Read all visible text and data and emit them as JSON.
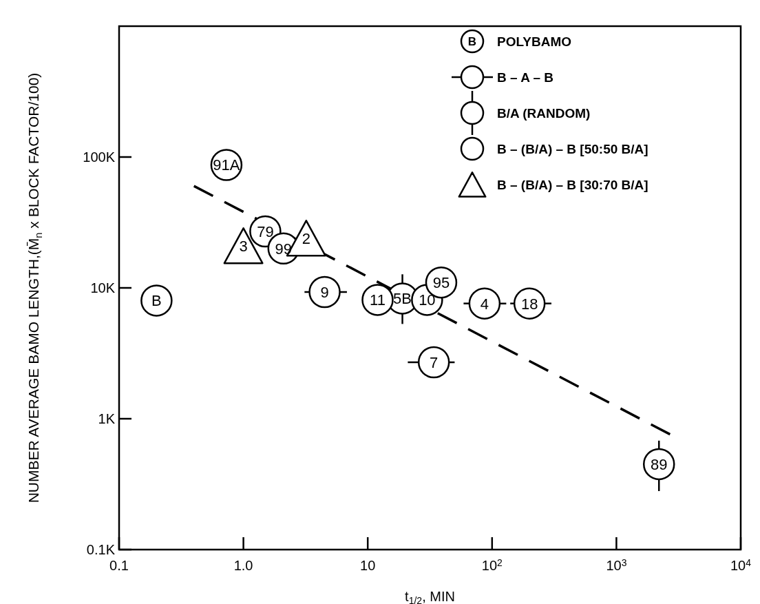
{
  "chart_data": {
    "type": "scatter",
    "xlabel": "t$_{1/2}$, MIN",
    "ylabel": "NUMBER AVERAGE BAMO LENGTH,(M̄$_{n}$ x BLOCK FACTOR/100)",
    "log": "xy",
    "xlim": [
      0.1,
      10000
    ],
    "ylim": [
      100,
      1000000
    ],
    "xticks": [
      0.1,
      {
        "value": 1,
        "label": "1.0"
      },
      10,
      {
        "value": 100,
        "label": "10$^{2}$"
      },
      {
        "value": 1000,
        "label": "10$^{3}$"
      },
      {
        "value": 10000,
        "label": "10$^{4}$"
      }
    ],
    "yticks": [
      {
        "value": 100,
        "label": "0.1K"
      },
      {
        "value": 1000,
        "label": "1K"
      },
      {
        "value": 10000,
        "label": "10K"
      },
      {
        "value": 100000,
        "label": "100K"
      }
    ],
    "legend": "top right",
    "grid": false,
    "series": [
      {
        "name": "POLYBAMO",
        "marker": "circle",
        "color": "#000000",
        "x": [
          0.2
        ],
        "values": [
          8000
        ]
      },
      {
        "name": "B – A – B",
        "marker": "circle",
        "color": "#000000",
        "x": [
          4.5,
          87,
          200,
          34
        ],
        "values": [
          9300,
          7600,
          7600,
          2700
        ],
        "xerrors": [
          [
            3.1,
            6.8
          ],
          [
            59,
            130
          ],
          [
            140,
            300
          ],
          [
            21,
            50
          ]
        ]
      },
      {
        "name": "B/A (RANDOM)",
        "marker": "circle",
        "color": "#000000",
        "x": [
          19,
          2200
        ],
        "values": [
          8300,
          450
        ],
        "errors": [
          [
            5300,
            12700
          ],
          [
            280,
            680
          ]
        ]
      },
      {
        "name": "B – (B/A) – B [50:50 B/A]",
        "marker": "circle",
        "color": "#000000",
        "x": [
          0.73,
          1.5,
          2.1,
          12,
          30,
          39
        ],
        "values": [
          87000,
          27000,
          20000,
          8100,
          8100,
          11000
        ]
      },
      {
        "name": "B – (B/A) – B [30:70 B/A]",
        "marker": "triangle",
        "color": "#000000",
        "x": [
          1.0,
          3.2
        ],
        "values": [
          21000,
          24000
        ]
      },
      {
        "type": "line",
        "marker": "none",
        "line_style": "dashed",
        "color": "#000000",
        "x": [
          0.4,
          2700
        ],
        "values": [
          60000,
          760
        ]
      }
    ],
    "annotations": [
      "B",
      {
        "text": "B",
        "x": 0.2,
        "y": 8000
      },
      {
        "text": "9",
        "x": 4.5,
        "y": 9300
      },
      {
        "text": "4",
        "x": 87,
        "y": 7600
      },
      {
        "text": "18",
        "x": 200,
        "y": 7600
      },
      {
        "text": "7",
        "x": 34,
        "y": 2700
      },
      {
        "text": "5B",
        "x": 19,
        "y": 8300
      },
      {
        "text": "89",
        "x": 2200,
        "y": 450
      },
      {
        "text": "91A",
        "x": 0.73,
        "y": 87000
      },
      {
        "text": "79",
        "x": 1.5,
        "y": 27000
      },
      {
        "text": "99",
        "x": 2.1,
        "y": 20000
      },
      {
        "text": "11",
        "x": 12,
        "y": 8100
      },
      {
        "text": "10",
        "x": 30,
        "y": 8100
      },
      {
        "text": "95",
        "x": 39,
        "y": 11000
      },
      {
        "text": "3",
        "x": 1.0,
        "y": 21000
      },
      {
        "text": "2",
        "x": 3.2,
        "y": 24000
      }
    ]
  }
}
